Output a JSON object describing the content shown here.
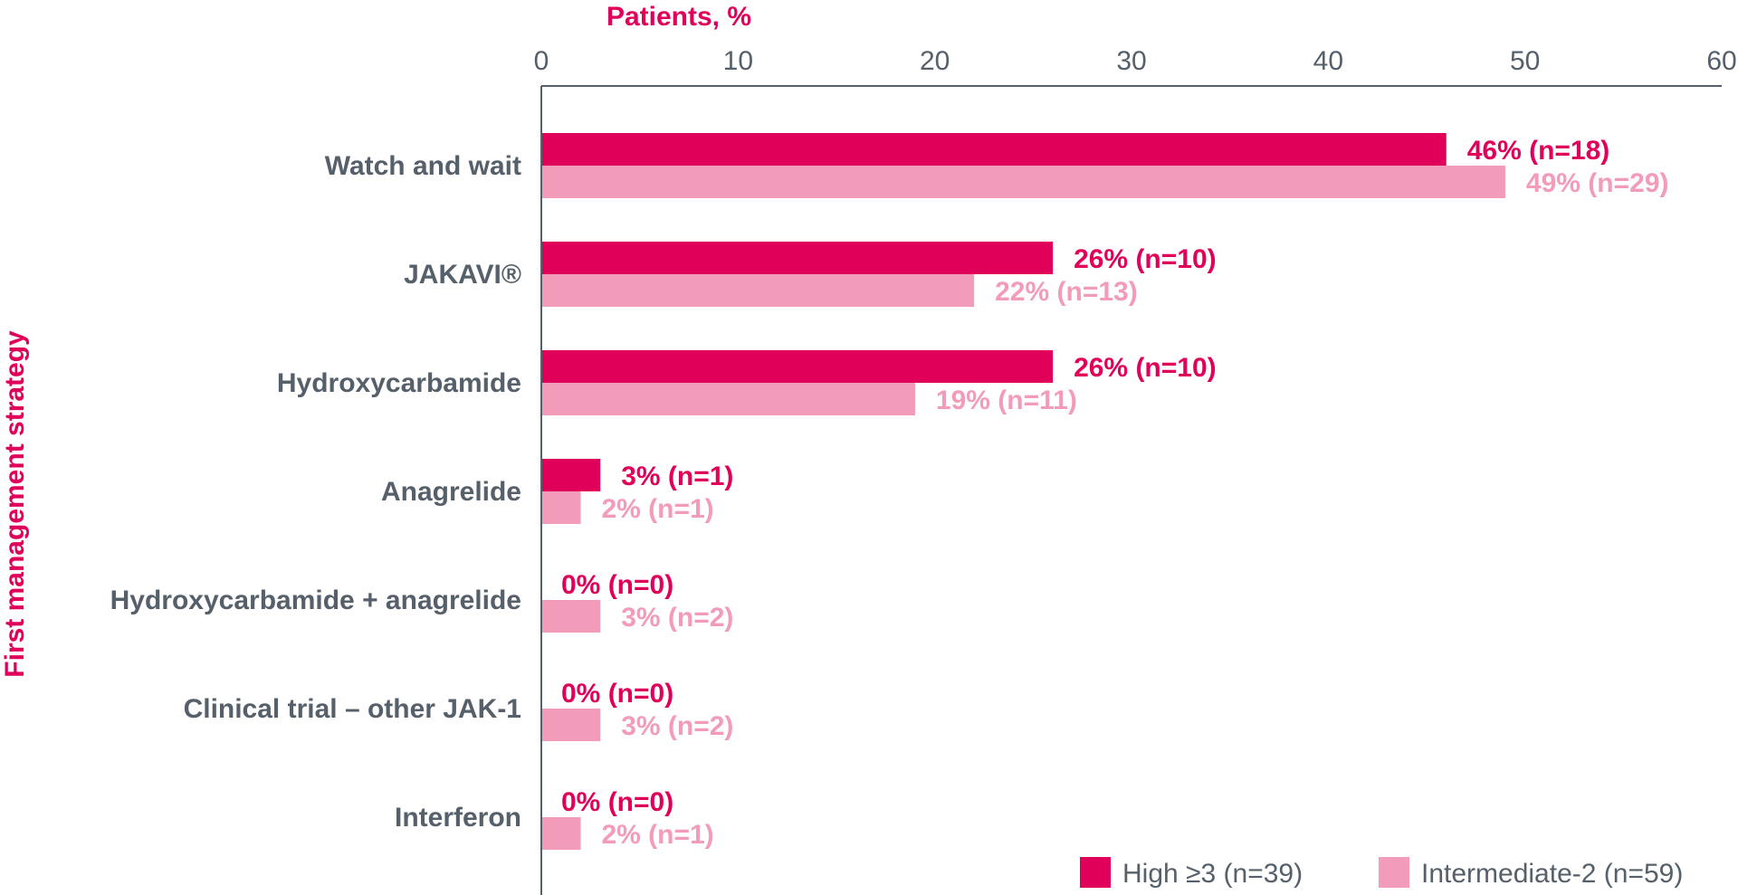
{
  "colors": {
    "series_high": "#e0005a",
    "series_intermediate": "#f29bbb",
    "axis": "#56606a",
    "text": "#56606a",
    "title": "#e0005a"
  },
  "chart_data": {
    "type": "bar",
    "orientation": "horizontal",
    "title": "",
    "xlabel": "Patients, %",
    "ylabel": "First management strategy",
    "xlim": [
      0,
      60
    ],
    "xticks": [
      "0",
      "10",
      "20",
      "30",
      "40",
      "50",
      "60"
    ],
    "x_axis_position": "top",
    "grid": false,
    "legend_position": "bottom-right",
    "categories": [
      "Watch and wait",
      "JAKAVI®",
      "Hydroxycarbamide",
      "Anagrelide",
      "Hydroxycarbamide + anagrelide",
      "Clinical trial – other JAK-1",
      "Interferon"
    ],
    "series": [
      {
        "name": "High ≥3 (n=39)",
        "color": "#e0005a",
        "values": [
          46,
          26,
          26,
          3,
          0,
          0,
          0
        ],
        "labels": [
          "46% (n=18)",
          "26% (n=10)",
          "26% (n=10)",
          "3% (n=1)",
          "0% (n=0)",
          "0% (n=0)",
          "0% (n=0)"
        ]
      },
      {
        "name": "Intermediate-2 (n=59)",
        "color": "#f29bbb",
        "values": [
          49,
          22,
          19,
          2,
          3,
          3,
          2
        ],
        "labels": [
          "49% (n=29)",
          "22% (n=13)",
          "19% (n=11)",
          "2% (n=1)",
          "3% (n=2)",
          "3% (n=2)",
          "2% (n=1)"
        ]
      }
    ]
  }
}
